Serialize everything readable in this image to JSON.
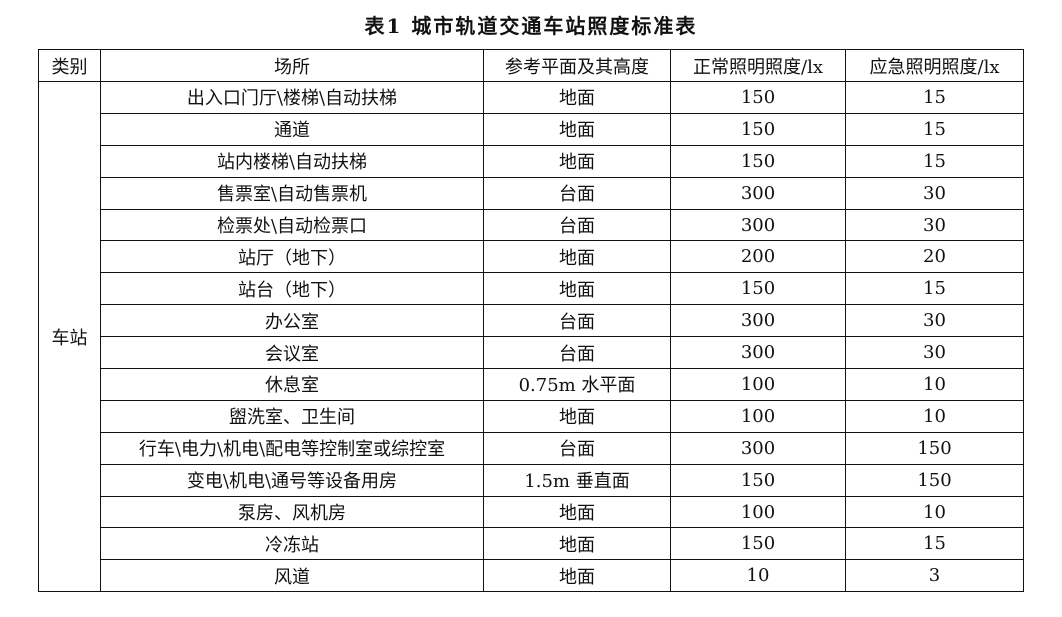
{
  "title": "表1 城市轨道交通车站照度标准表",
  "headers": [
    "类别",
    "场所",
    "参考平面及其高度",
    "正常照明照度/lx",
    "应急照明照度/lx"
  ],
  "category": "车站",
  "rows": [
    {
      "place": "出入口门厅\\楼梯\\自动扶梯",
      "plane": "地面",
      "normal": "150",
      "emergency": "15"
    },
    {
      "place": "通道",
      "plane": "地面",
      "normal": "150",
      "emergency": "15"
    },
    {
      "place": "站内楼梯\\自动扶梯",
      "plane": "地面",
      "normal": "150",
      "emergency": "15"
    },
    {
      "place": "售票室\\自动售票机",
      "plane": "台面",
      "normal": "300",
      "emergency": "30"
    },
    {
      "place": "检票处\\自动检票口",
      "plane": "台面",
      "normal": "300",
      "emergency": "30"
    },
    {
      "place": "站厅（地下）",
      "plane": "地面",
      "normal": "200",
      "emergency": "20"
    },
    {
      "place": "站台（地下）",
      "plane": "地面",
      "normal": "150",
      "emergency": "15"
    },
    {
      "place": "办公室",
      "plane": "台面",
      "normal": "300",
      "emergency": "30"
    },
    {
      "place": "会议室",
      "plane": "台面",
      "normal": "300",
      "emergency": "30"
    },
    {
      "place": "休息室",
      "plane": "0.75m 水平面",
      "normal": "100",
      "emergency": "10"
    },
    {
      "place": "盥洗室、卫生间",
      "plane": "地面",
      "normal": "100",
      "emergency": "10"
    },
    {
      "place": "行车\\电力\\机电\\配电等控制室或综控室",
      "plane": "台面",
      "normal": "300",
      "emergency": "150"
    },
    {
      "place": "变电\\机电\\通号等设备用房",
      "plane": "1.5m 垂直面",
      "normal": "150",
      "emergency": "150"
    },
    {
      "place": "泵房、风机房",
      "plane": "地面",
      "normal": "100",
      "emergency": "10"
    },
    {
      "place": "冷冻站",
      "plane": "地面",
      "normal": "150",
      "emergency": "15"
    },
    {
      "place": "风道",
      "plane": "地面",
      "normal": "10",
      "emergency": "3"
    }
  ]
}
